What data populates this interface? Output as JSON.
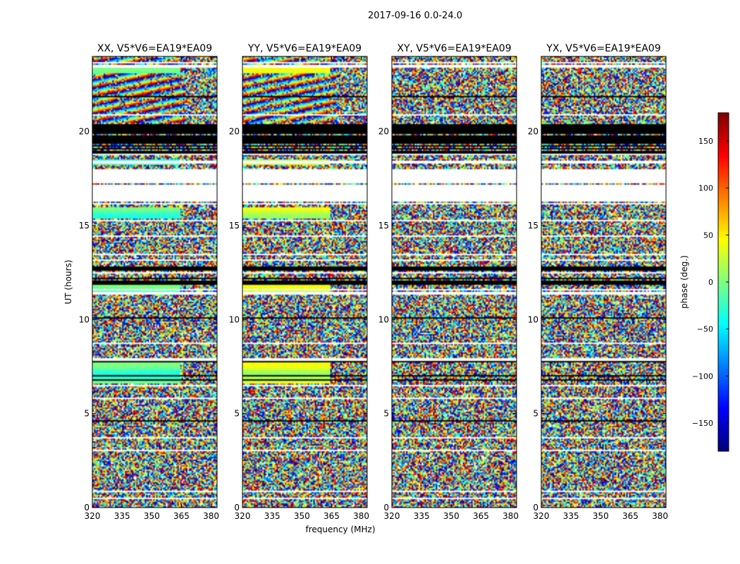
{
  "chart_data": {
    "type": "heatmap",
    "suptitle": "2017-09-16 0.0-24.0",
    "xlabel": "frequency (MHz)",
    "ylabel": "UT (hours)",
    "xlim": [
      320,
      383
    ],
    "ylim": [
      0,
      24
    ],
    "xticks": [
      320,
      335,
      350,
      365,
      380
    ],
    "yticks": [
      0,
      5,
      10,
      15,
      20
    ],
    "panels": [
      {
        "title": "XX, V5*V6=EA19*EA09",
        "pol": "XX"
      },
      {
        "title": "YY, V5*V6=EA19*EA09",
        "pol": "YY"
      },
      {
        "title": "XY, V5*V6=EA19*EA09",
        "pol": "XY"
      },
      {
        "title": "YX, V5*V6=EA19*EA09",
        "pol": "YX"
      }
    ],
    "colorbar": {
      "label": "phase (deg.)",
      "range": [
        -180,
        180
      ],
      "ticks": [
        150,
        100,
        50,
        0,
        -50,
        -100,
        -150
      ],
      "tick_labels": [
        "150",
        "100",
        "50",
        "0",
        "−50",
        "−100",
        "−150"
      ],
      "colormap": "jet"
    },
    "flagged_gaps_hours": [
      [
        16.1,
        18.0
      ],
      [
        7.8,
        7.95
      ],
      [
        11.35,
        11.45
      ]
    ],
    "coherent_bands_hours": [
      [
        18.2,
        18.5
      ],
      [
        15.4,
        16.0
      ],
      [
        11.5,
        12.0
      ],
      [
        6.6,
        7.7
      ],
      [
        23.1,
        23.5
      ]
    ],
    "dense_flag_bands_hours": [
      [
        18.8,
        20.4
      ],
      [
        11.9,
        12.2
      ],
      [
        12.5,
        12.8
      ]
    ]
  }
}
